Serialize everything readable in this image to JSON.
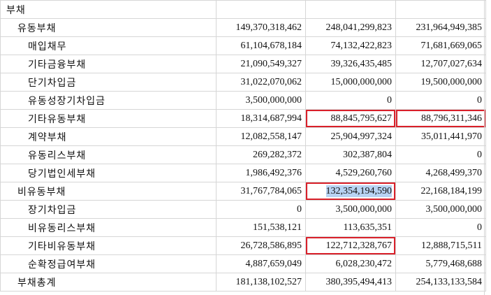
{
  "rows": [
    {
      "label": "부채",
      "level": 0,
      "v1": "",
      "v2": "",
      "v3": ""
    },
    {
      "label": "유동부채",
      "level": 1,
      "v1": "149,370,318,462",
      "v2": "248,041,299,823",
      "v3": "231,964,949,385"
    },
    {
      "label": "매입채무",
      "level": 2,
      "v1": "61,104,678,184",
      "v2": "74,132,422,823",
      "v3": "71,681,669,065"
    },
    {
      "label": "기타금융부채",
      "level": 2,
      "v1": "21,090,549,327",
      "v2": "39,326,435,485",
      "v3": "12,707,027,634"
    },
    {
      "label": "단기차입금",
      "level": 2,
      "v1": "31,022,070,062",
      "v2": "15,000,000,000",
      "v3": "19,500,000,000"
    },
    {
      "label": "유동성장기차입금",
      "level": 2,
      "v1": "3,500,000,000",
      "v2": "0",
      "v3": "0"
    },
    {
      "label": "기타유동부채",
      "level": 2,
      "v1": "18,314,687,994",
      "v2": "88,845,795,627",
      "v3": "88,796,311,346",
      "red2": true,
      "red3": true
    },
    {
      "label": "계약부채",
      "level": 2,
      "v1": "12,082,558,147",
      "v2": "25,904,997,324",
      "v3": "35,011,441,970"
    },
    {
      "label": "유동리스부채",
      "level": 2,
      "v1": "269,282,372",
      "v2": "302,387,804",
      "v3": "0"
    },
    {
      "label": "당기법인세부채",
      "level": 2,
      "v1": "1,986,492,376",
      "v2": "4,529,260,760",
      "v3": "4,268,499,370"
    },
    {
      "label": "비유동부채",
      "level": 1,
      "v1": "31,767,784,065",
      "v2": "132,354,194,590",
      "v3": "22,168,184,199",
      "red2": true,
      "sel2": true
    },
    {
      "label": "장기차입금",
      "level": 2,
      "v1": "0",
      "v2": "3,500,000,000",
      "v3": "3,500,000,000"
    },
    {
      "label": "비유동리스부채",
      "level": 2,
      "v1": "151,538,121",
      "v2": "113,635,351",
      "v3": "0"
    },
    {
      "label": "기타비유동부채",
      "level": 2,
      "v1": "26,728,586,895",
      "v2": "122,712,328,767",
      "v3": "12,888,715,511",
      "red2": true
    },
    {
      "label": "순확정급여부채",
      "level": 2,
      "v1": "4,887,659,049",
      "v2": "6,028,230,472",
      "v3": "5,779,468,688"
    },
    {
      "label": "부채총계",
      "level": 1,
      "v1": "181,138,102,527",
      "v2": "380,395,494,413",
      "v3": "254,133,133,584"
    }
  ]
}
